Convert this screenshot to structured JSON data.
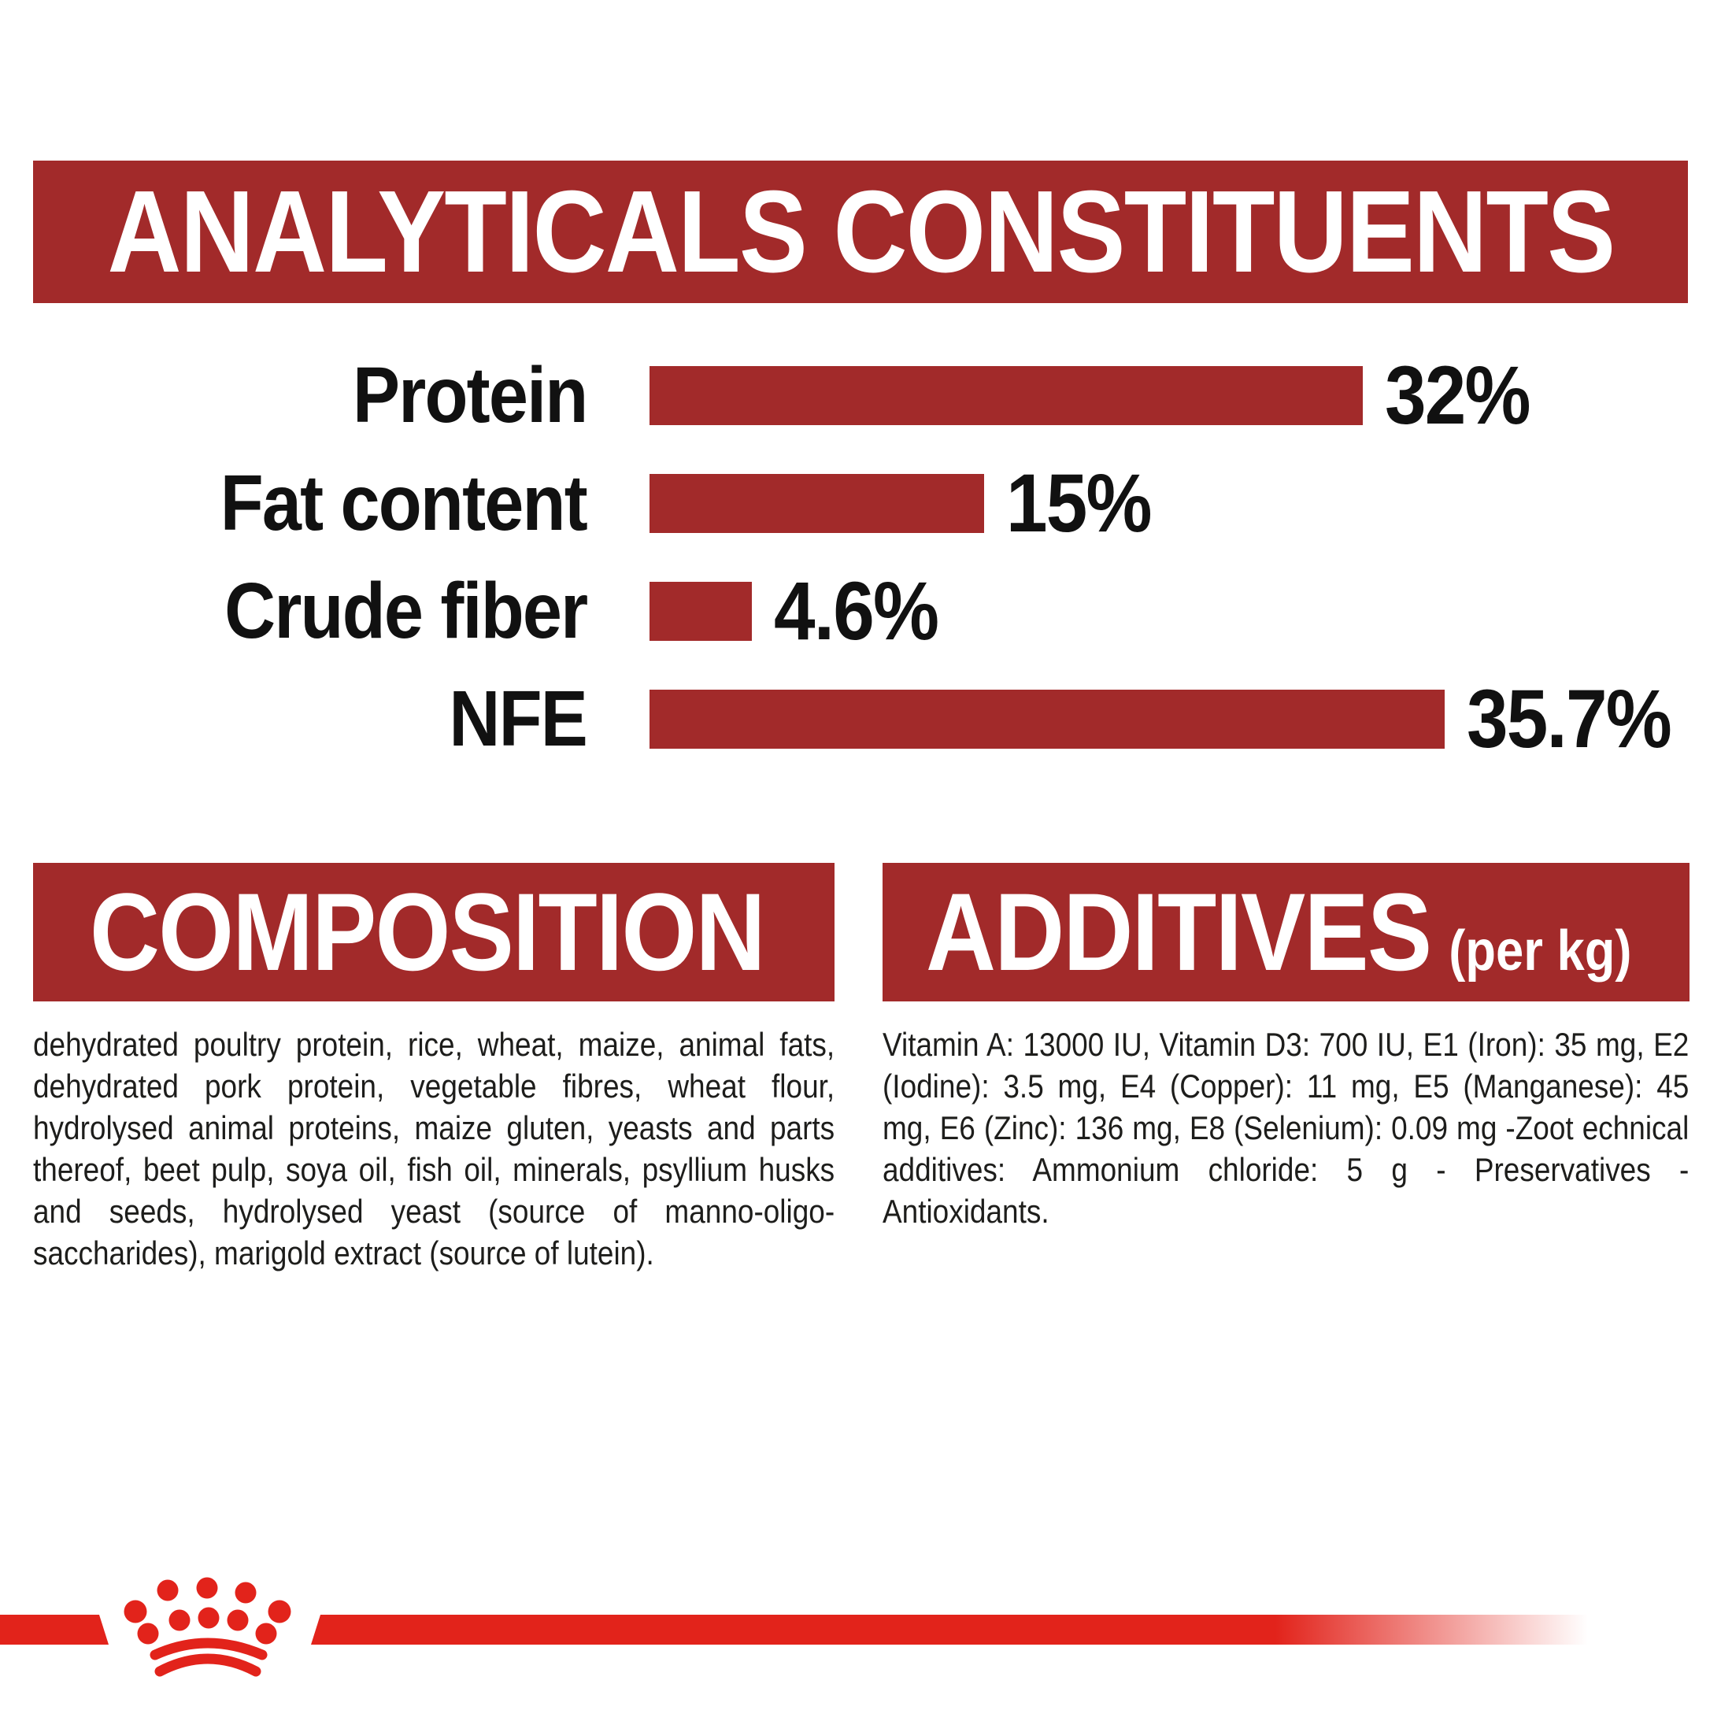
{
  "colors": {
    "banner_red": "#A22A2A",
    "bar_red": "#A22A2A",
    "accent_red": "#E2231B",
    "text_black": "#111111",
    "body_text": "#1d1d1b",
    "background": "#ffffff"
  },
  "header": {
    "title": "ANALYTICALS CONSTITUENTS"
  },
  "chart_data": {
    "type": "bar",
    "orientation": "horizontal",
    "title": "ANALYTICALS CONSTITUENTS",
    "categories": [
      "Protein",
      "Fat content",
      "Crude fiber",
      "NFE"
    ],
    "values": [
      32,
      15,
      4.6,
      35.7
    ],
    "value_labels": [
      "32%",
      "15%",
      "4.6%",
      "35.7%"
    ],
    "unit": "%",
    "xlim": [
      0,
      36
    ],
    "bar_color": "#A22A2A",
    "grid": false,
    "value_label_position": "right-of-bar"
  },
  "composition": {
    "title": "COMPOSITION",
    "body": "dehydrated poultry protein, rice, wheat, maize, animal fats, dehydrated pork protein, vegetable fibres, wheat flour, hydrolysed animal proteins, maize gluten, yeasts and parts thereof, beet pulp, soya oil, fish oil, minerals, psyllium husks and seeds, hydrolysed yeast (source of manno-oligo-saccharides), marigold extract (source of lutein)."
  },
  "additives": {
    "title": "ADDITIVES",
    "title_suffix": "(per kg)",
    "body": "Vitamin A: 13000 IU, Vitamin D3: 700 IU, E1 (Iron): 35 mg, E2 (Iodine): 3.5 mg, E4 (Copper): 11 mg, E5 (Manganese): 45 mg, E6 (Zinc): 136 mg, E8 (Selenium): 0.09 mg -Zoot echnical additives: Ammonium chloride: 5 g - Preservatives - Antioxidants."
  },
  "footer": {
    "brand_icon": "royal-canin-crown-logo"
  }
}
